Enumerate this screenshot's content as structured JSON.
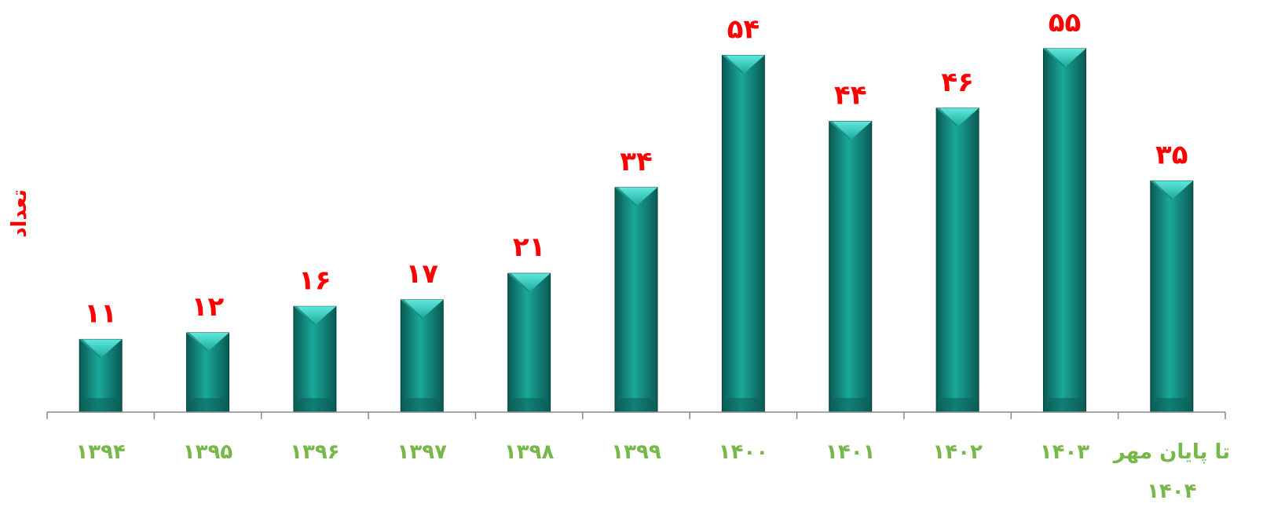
{
  "chart_data": {
    "type": "bar",
    "title": "",
    "xlabel": "",
    "ylabel": "تعداد",
    "categories": [
      "۱۳۹۴",
      "۱۳۹۵",
      "۱۳۹۶",
      "۱۳۹۷",
      "۱۳۹۸",
      "۱۳۹۹",
      "۱۴۰۰",
      "۱۴۰۱",
      "۱۴۰۲",
      "۱۴۰۳",
      "تا پایان مهر ۱۴۰۴"
    ],
    "values": [
      11,
      12,
      16,
      17,
      21,
      34,
      54,
      44,
      46,
      55,
      35
    ],
    "value_labels": [
      "۱۱",
      "۱۲",
      "۱۶",
      "۱۷",
      "۲۱",
      "۳۴",
      "۵۴",
      "۴۴",
      "۴۶",
      "۵۵",
      "۳۵"
    ],
    "ylim": [
      0,
      55
    ],
    "grid": false,
    "legend": "none",
    "colors": {
      "bar": "#1aa898",
      "bar_dark": "#0a5a54",
      "bar_light": "#5ee8dc",
      "value_label": "#ff0000",
      "category_label": "#77b84a",
      "ylabel": "#ff0000",
      "axis": "#888888"
    }
  }
}
